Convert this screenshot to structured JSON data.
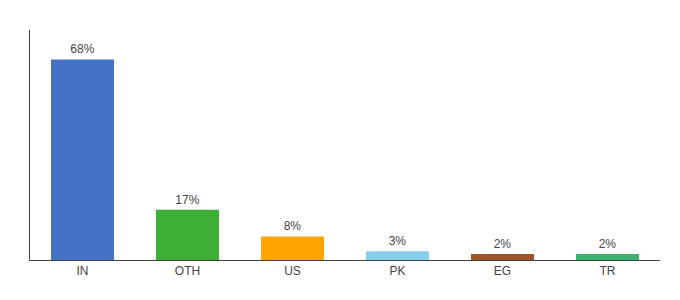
{
  "chart_data": {
    "type": "bar",
    "categories": [
      "IN",
      "OTH",
      "US",
      "PK",
      "EG",
      "TR"
    ],
    "values": [
      68,
      17,
      8,
      3,
      2,
      2
    ],
    "value_labels": [
      "68%",
      "17%",
      "8%",
      "3%",
      "2%",
      "2%"
    ],
    "data_labels": true,
    "colors": [
      "#4472C4",
      "#3CB034",
      "#FFA500",
      "#87CEEB",
      "#A0522D",
      "#3CB371"
    ],
    "ylim": [
      0,
      78
    ],
    "grid": false,
    "tick_labels": "x"
  }
}
